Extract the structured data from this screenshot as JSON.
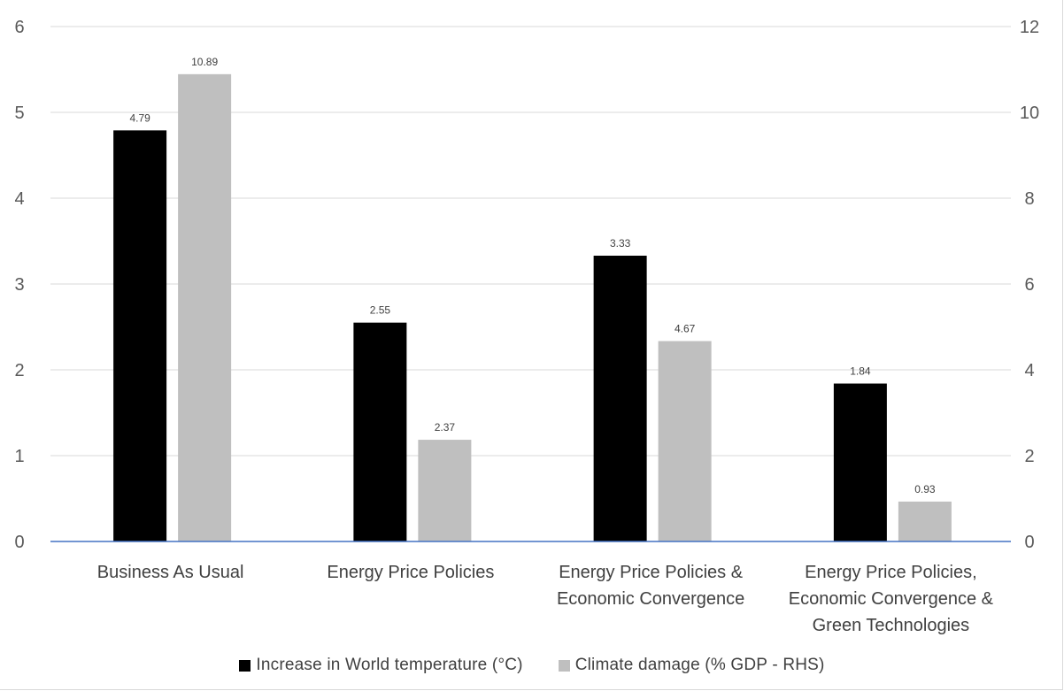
{
  "chart_data": {
    "type": "bar",
    "categories": [
      [
        "Business As Usual"
      ],
      [
        "Energy Price Policies"
      ],
      [
        "Energy Price Policies &",
        "Economic Convergence"
      ],
      [
        "Energy Price Policies,",
        "Economic Convergence &",
        "Green Technologies"
      ]
    ],
    "series": [
      {
        "name": "Increase in World temperature (°C)",
        "axis": "left",
        "color": "#000000",
        "values": [
          4.79,
          2.55,
          3.33,
          1.84
        ],
        "labels": [
          "4.79",
          "2.55",
          "3.33",
          "1.84"
        ]
      },
      {
        "name": "Climate damage (% GDP - RHS)",
        "axis": "right",
        "color": "#bfbfbf",
        "values": [
          10.89,
          2.37,
          4.67,
          0.93
        ],
        "labels": [
          "10.89",
          "2.37",
          "4.67",
          "0.93"
        ]
      }
    ],
    "y_left": {
      "lim": [
        0,
        6
      ],
      "ticks": [
        "0",
        "1",
        "2",
        "3",
        "4",
        "5",
        "6"
      ]
    },
    "y_right": {
      "lim": [
        0,
        12
      ],
      "ticks": [
        "0",
        "2",
        "4",
        "6",
        "8",
        "10",
        "12"
      ]
    },
    "grid": true,
    "legend": "bottom"
  }
}
